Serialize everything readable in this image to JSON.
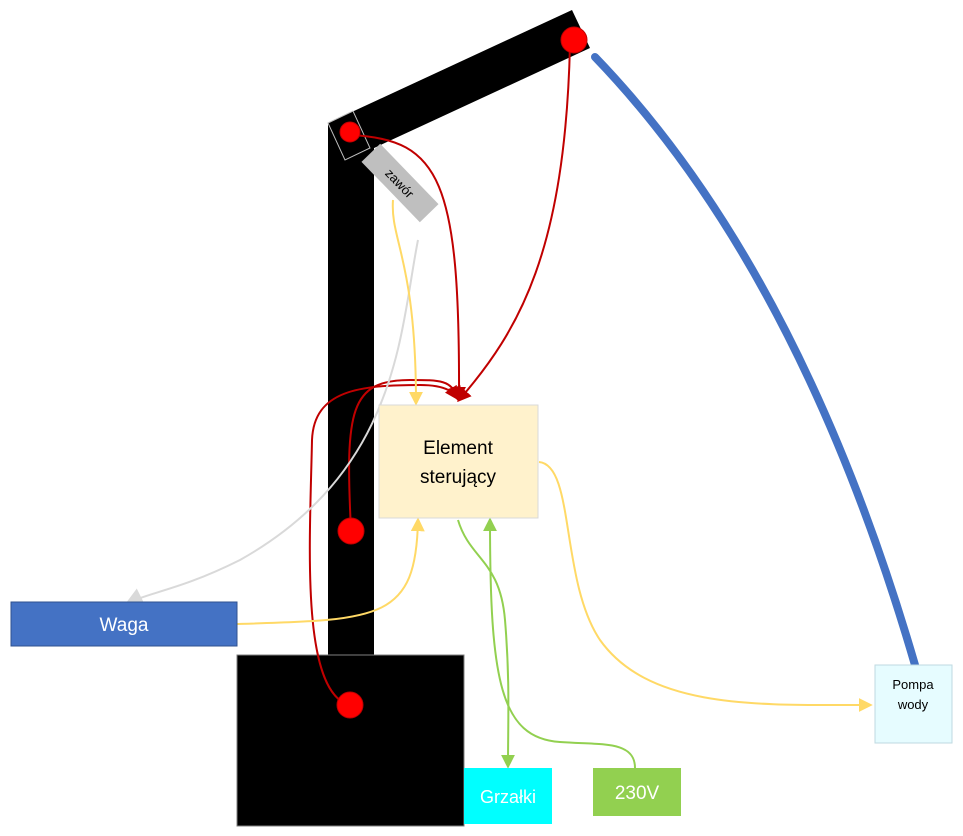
{
  "labels": {
    "valve": "zawór",
    "controller_line1": "Element",
    "controller_line2": "sterujący",
    "scale": "Waga",
    "pump_line1": "Pompa",
    "pump_line2": "wody",
    "heaters": "Grzałki",
    "power": "230V"
  },
  "colors": {
    "frame": "#000000",
    "sensor": "#ff0000",
    "sensor_wire": "#c00000",
    "signal_wire": "#ffd966",
    "power_wire": "#92d050",
    "scale_wire": "#d9d9d9",
    "water_hose": "#4472c4",
    "controller_fill": "#fff2cc",
    "scale_fill": "#4472c4",
    "pump_fill": "#e6fcff",
    "heaters_fill": "#00ffff",
    "power_fill": "#92d050",
    "valve_fill": "#bfbfbf"
  }
}
